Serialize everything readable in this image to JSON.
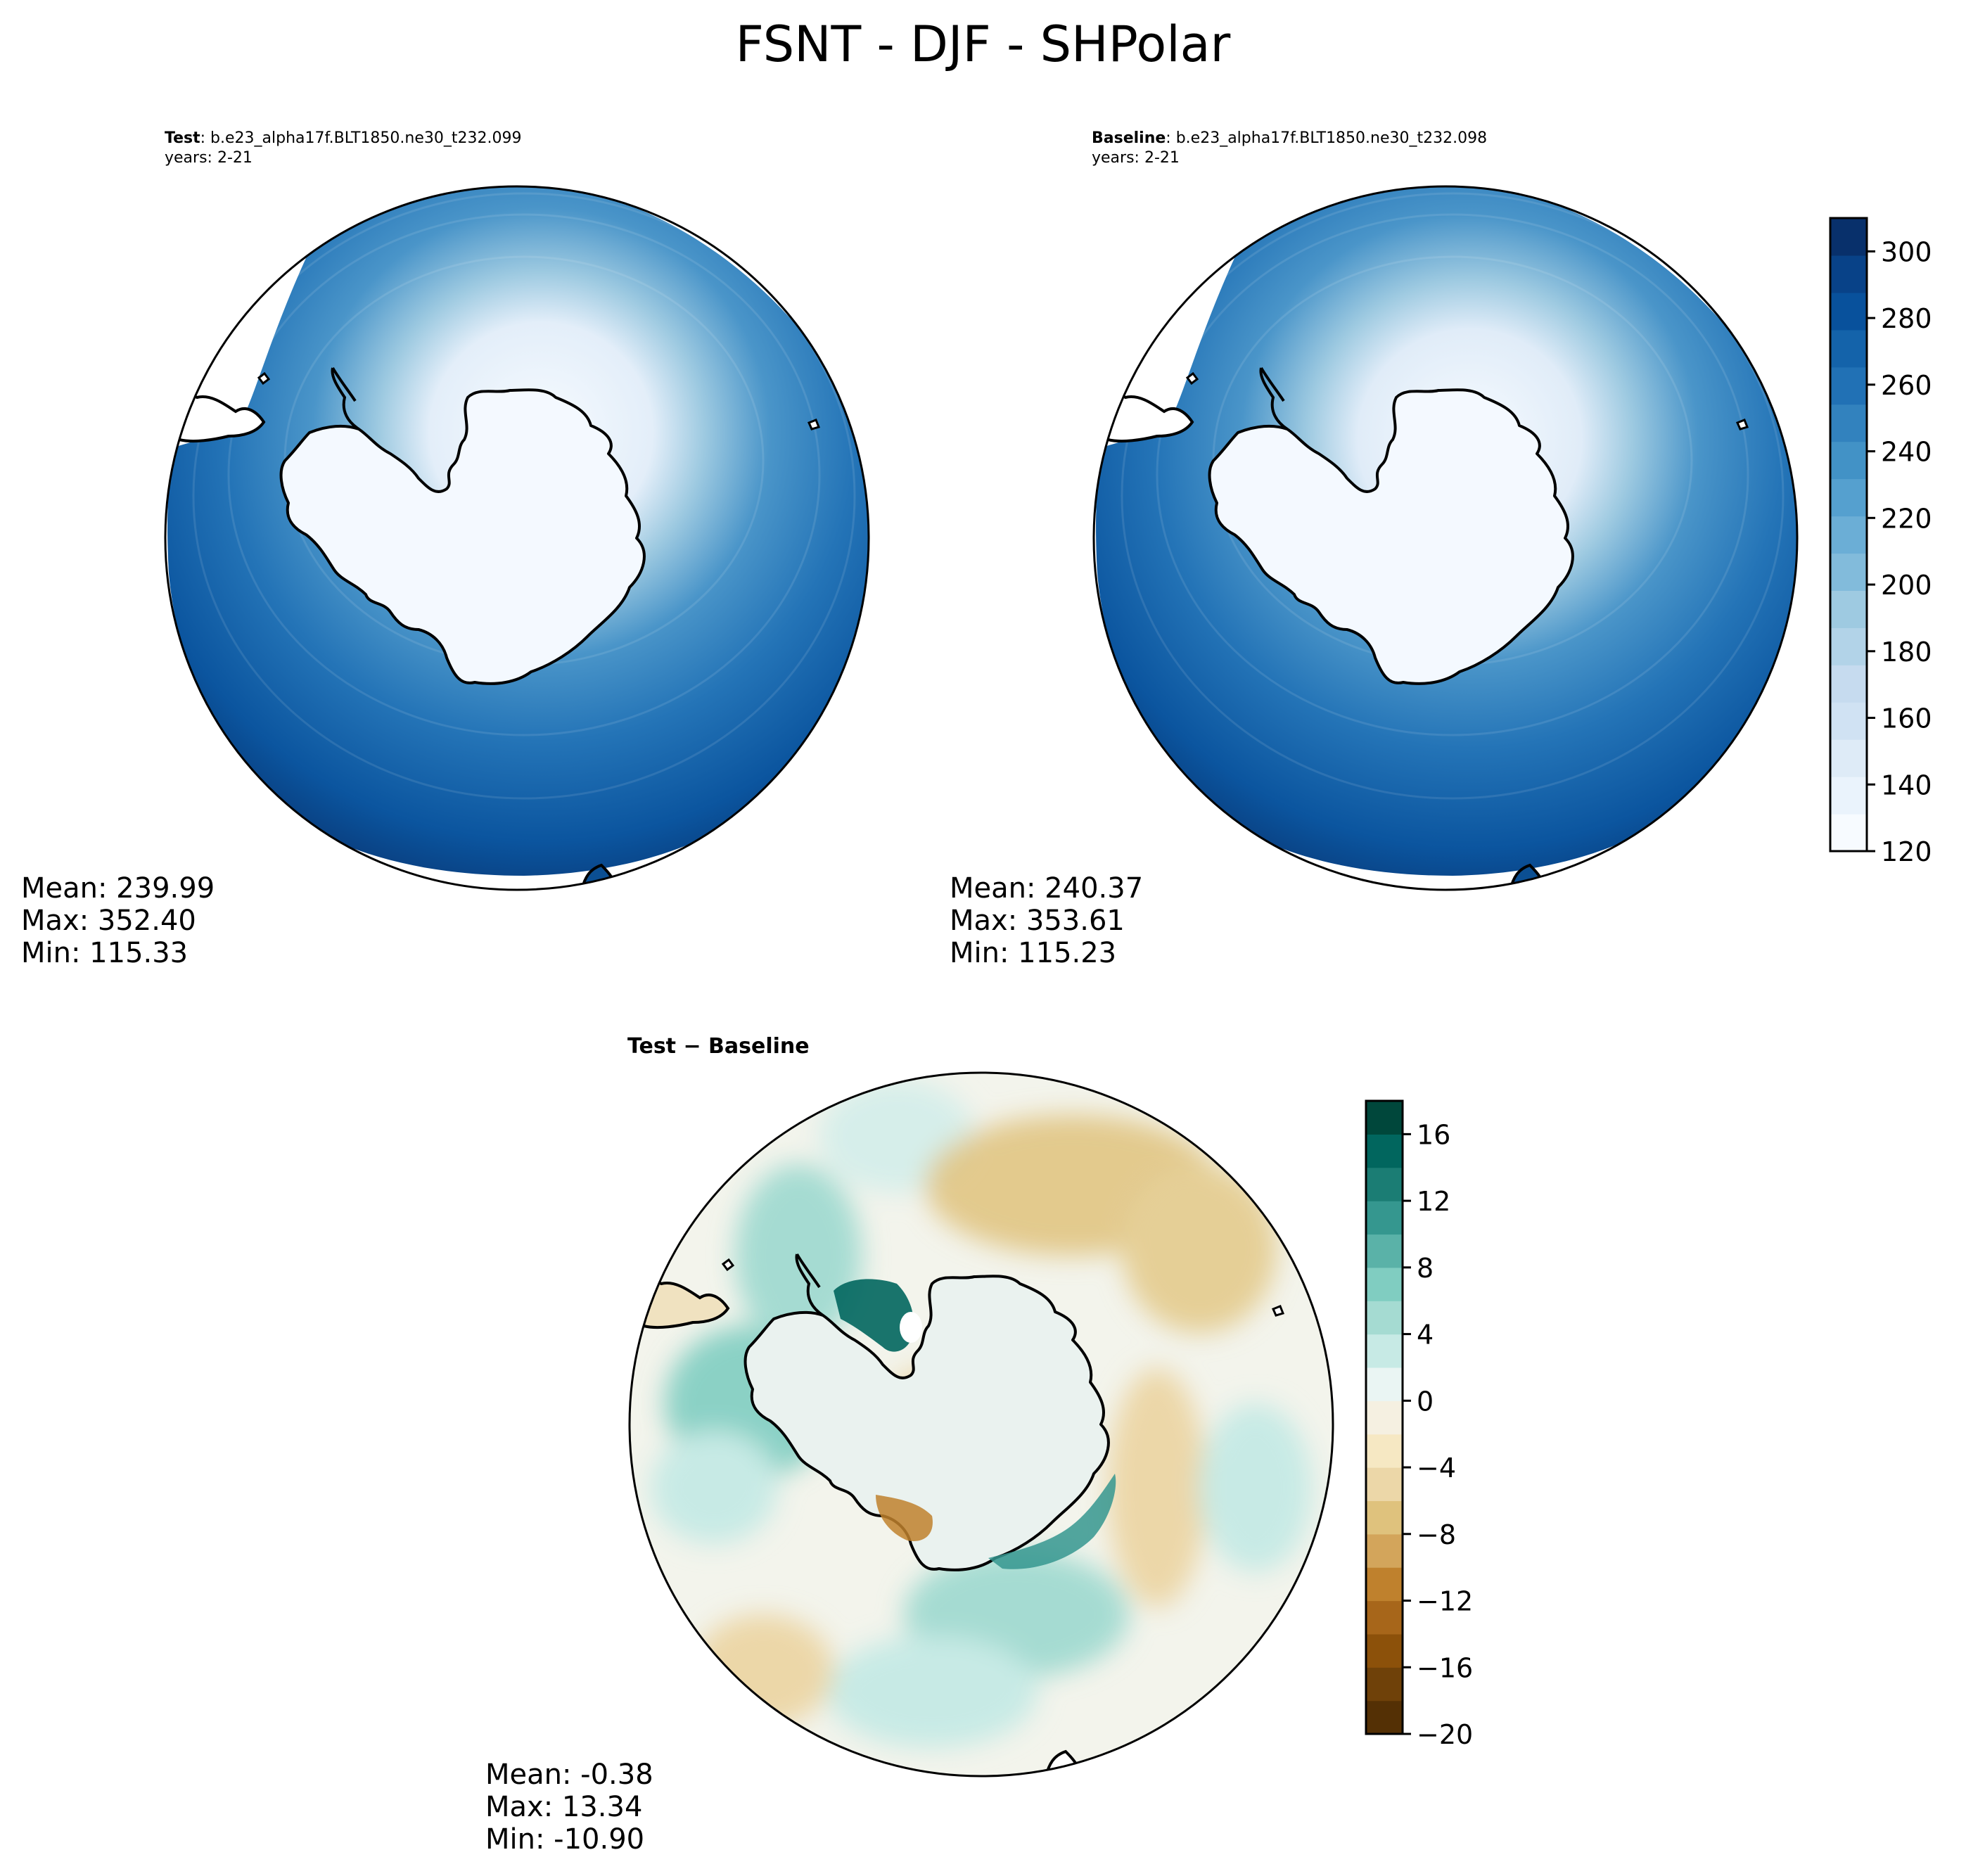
{
  "figure": {
    "title": "FSNT - DJF - SHPolar"
  },
  "panels": {
    "test": {
      "label": "Test",
      "case": ": b.e23_alpha17f.BLT1850.ne30_t232.099",
      "years": "years: 2-21",
      "stats": {
        "mean": "Mean: 239.99",
        "max": "Max: 352.40",
        "min": "Min: 115.33"
      }
    },
    "baseline": {
      "label": "Baseline",
      "case": ": b.e23_alpha17f.BLT1850.ne30_t232.098",
      "years": "years: 2-21",
      "stats": {
        "mean": "Mean: 240.37",
        "max": "Max: 353.61",
        "min": "Min: 115.23"
      }
    },
    "diff": {
      "title": "Test − Baseline",
      "stats": {
        "mean": "Mean: -0.38",
        "max": "Max: 13.34",
        "min": "Min: -10.90"
      }
    }
  },
  "colorbars": {
    "main": {
      "range": [
        120,
        310
      ],
      "ticks": [
        "120",
        "140",
        "160",
        "180",
        "200",
        "220",
        "240",
        "260",
        "280",
        "300"
      ],
      "tick_values": [
        120,
        140,
        160,
        180,
        200,
        220,
        240,
        260,
        280,
        300
      ],
      "colors": [
        "#f7fbff",
        "#eaf3fc",
        "#deebf7",
        "#d0e2f3",
        "#c6dbef",
        "#b2d3e8",
        "#9ecae1",
        "#82bbdb",
        "#6baed6",
        "#55a0cf",
        "#4292c6",
        "#3282be",
        "#2171b5",
        "#1463aa",
        "#08519c",
        "#084288",
        "#08306b"
      ]
    },
    "diff": {
      "range": [
        -20,
        18
      ],
      "ticks": [
        "−20",
        "−16",
        "−12",
        "−8",
        "−4",
        "0",
        "4",
        "8",
        "12",
        "16"
      ],
      "tick_values": [
        -20,
        -16,
        -12,
        -8,
        -4,
        0,
        4,
        8,
        12,
        16
      ],
      "colors": [
        "#543005",
        "#6f4109",
        "#8c510a",
        "#a7661a",
        "#bf812d",
        "#d3a55b",
        "#dfc27d",
        "#ecd7a8",
        "#f6e8c3",
        "#f5f0e1",
        "#eaf5f3",
        "#c7eae5",
        "#a5dbd2",
        "#80cdc1",
        "#5ab2a8",
        "#35978f",
        "#1b7d74",
        "#01665e",
        "#00473b"
      ]
    }
  }
}
